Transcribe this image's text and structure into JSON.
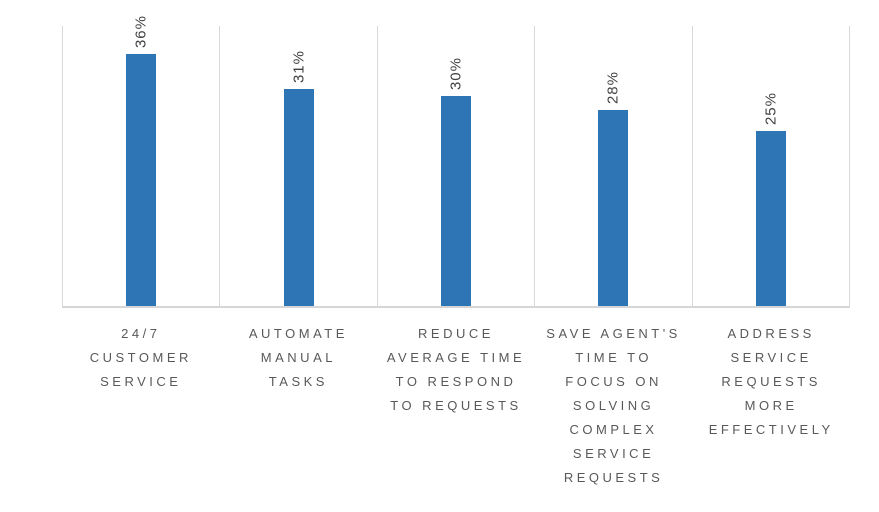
{
  "chart_data": {
    "type": "bar",
    "title": "",
    "xlabel": "",
    "ylabel": "",
    "categories": [
      "24/7 CUSTOMER SERVICE",
      "AUTOMATE MANUAL TASKS",
      "REDUCE AVERAGE TIME TO RESPOND TO REQUESTS",
      "SAVE AGENT'S TIME TO FOCUS ON SOLVING COMPLEX SERVICE REQUESTS",
      "ADDRESS SERVICE REQUESTS MORE EFFECTIVELY"
    ],
    "category_label_lines": [
      [
        "24/7",
        "CUSTOMER",
        "SERVICE"
      ],
      [
        "AUTOMATE",
        "MANUAL",
        "TASKS"
      ],
      [
        "REDUCE",
        "AVERAGE TIME",
        "TO RESPOND",
        "TO REQUESTS"
      ],
      [
        "SAVE AGENT'S",
        "TIME TO",
        "FOCUS ON",
        "SOLVING",
        "COMPLEX",
        "SERVICE",
        "REQUESTS"
      ],
      [
        "ADDRESS",
        "SERVICE",
        "REQUESTS",
        "MORE",
        "EFFECTIVELY"
      ]
    ],
    "values": [
      36,
      31,
      30,
      28,
      25
    ],
    "value_labels": [
      "36%",
      "31%",
      "30%",
      "28%",
      "25%"
    ],
    "value_label_rotation_deg": -90,
    "ylim": [
      0,
      40
    ],
    "grid": "vertical-category-separators-only",
    "legend": "none",
    "colors": {
      "bar": "#2e75b6",
      "gridline": "#d9d9d9",
      "axis_line": "#d6d6d6",
      "value_label_text": "#404040",
      "category_label_text": "#595959",
      "background": "#ffffff"
    }
  }
}
